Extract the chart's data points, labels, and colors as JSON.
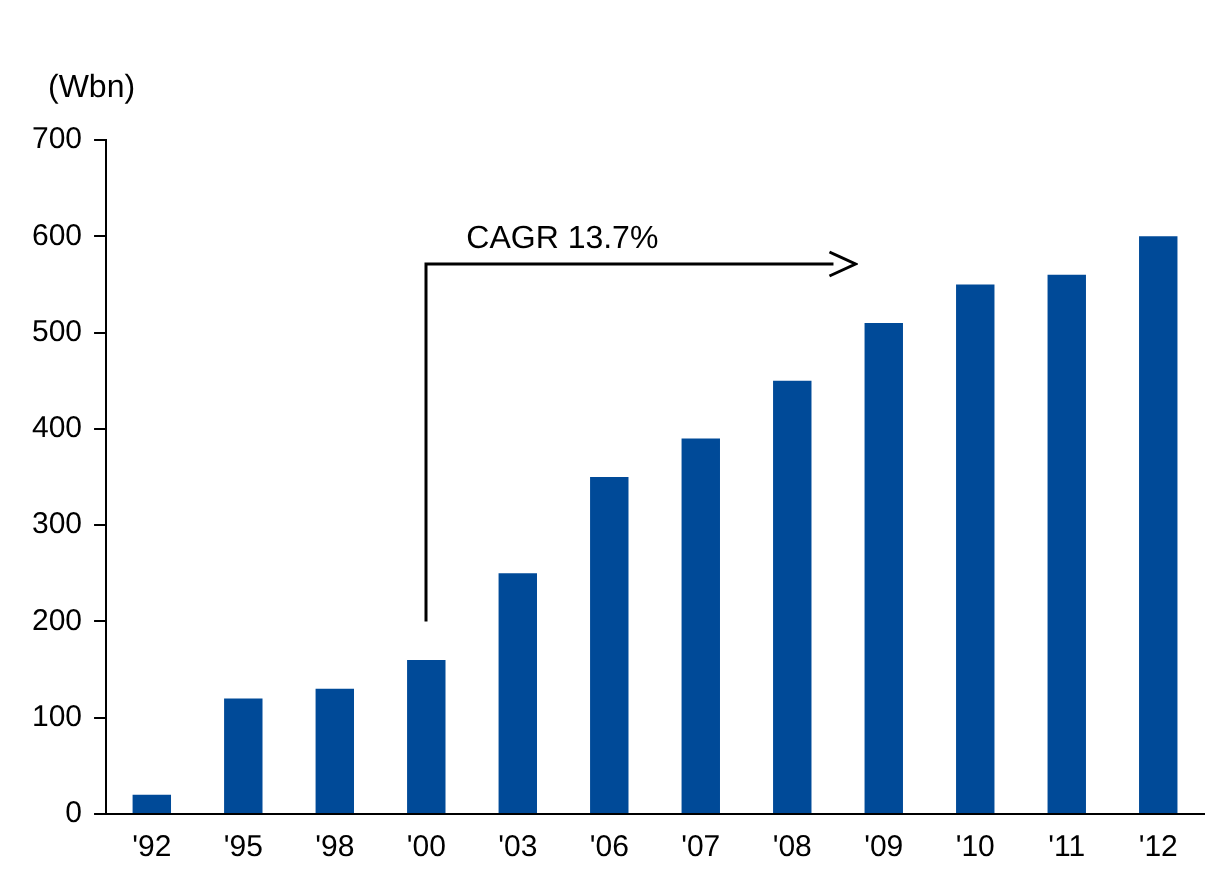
{
  "chart_data": {
    "type": "bar",
    "ylabel": "(Wbn)",
    "categories": [
      "'92",
      "'95",
      "'98",
      "'00",
      "'03",
      "'06",
      "'07",
      "'08",
      "'09",
      "'10",
      "'11",
      "'12"
    ],
    "values": [
      20,
      120,
      130,
      160,
      250,
      350,
      390,
      450,
      510,
      550,
      560,
      600
    ],
    "color": "#004a98",
    "ylim": [
      0,
      700
    ],
    "yticks": [
      0,
      100,
      200,
      300,
      400,
      500,
      600,
      700
    ],
    "grid": false,
    "legend": false,
    "annotations": [
      "CAGR 13.7%"
    ]
  }
}
